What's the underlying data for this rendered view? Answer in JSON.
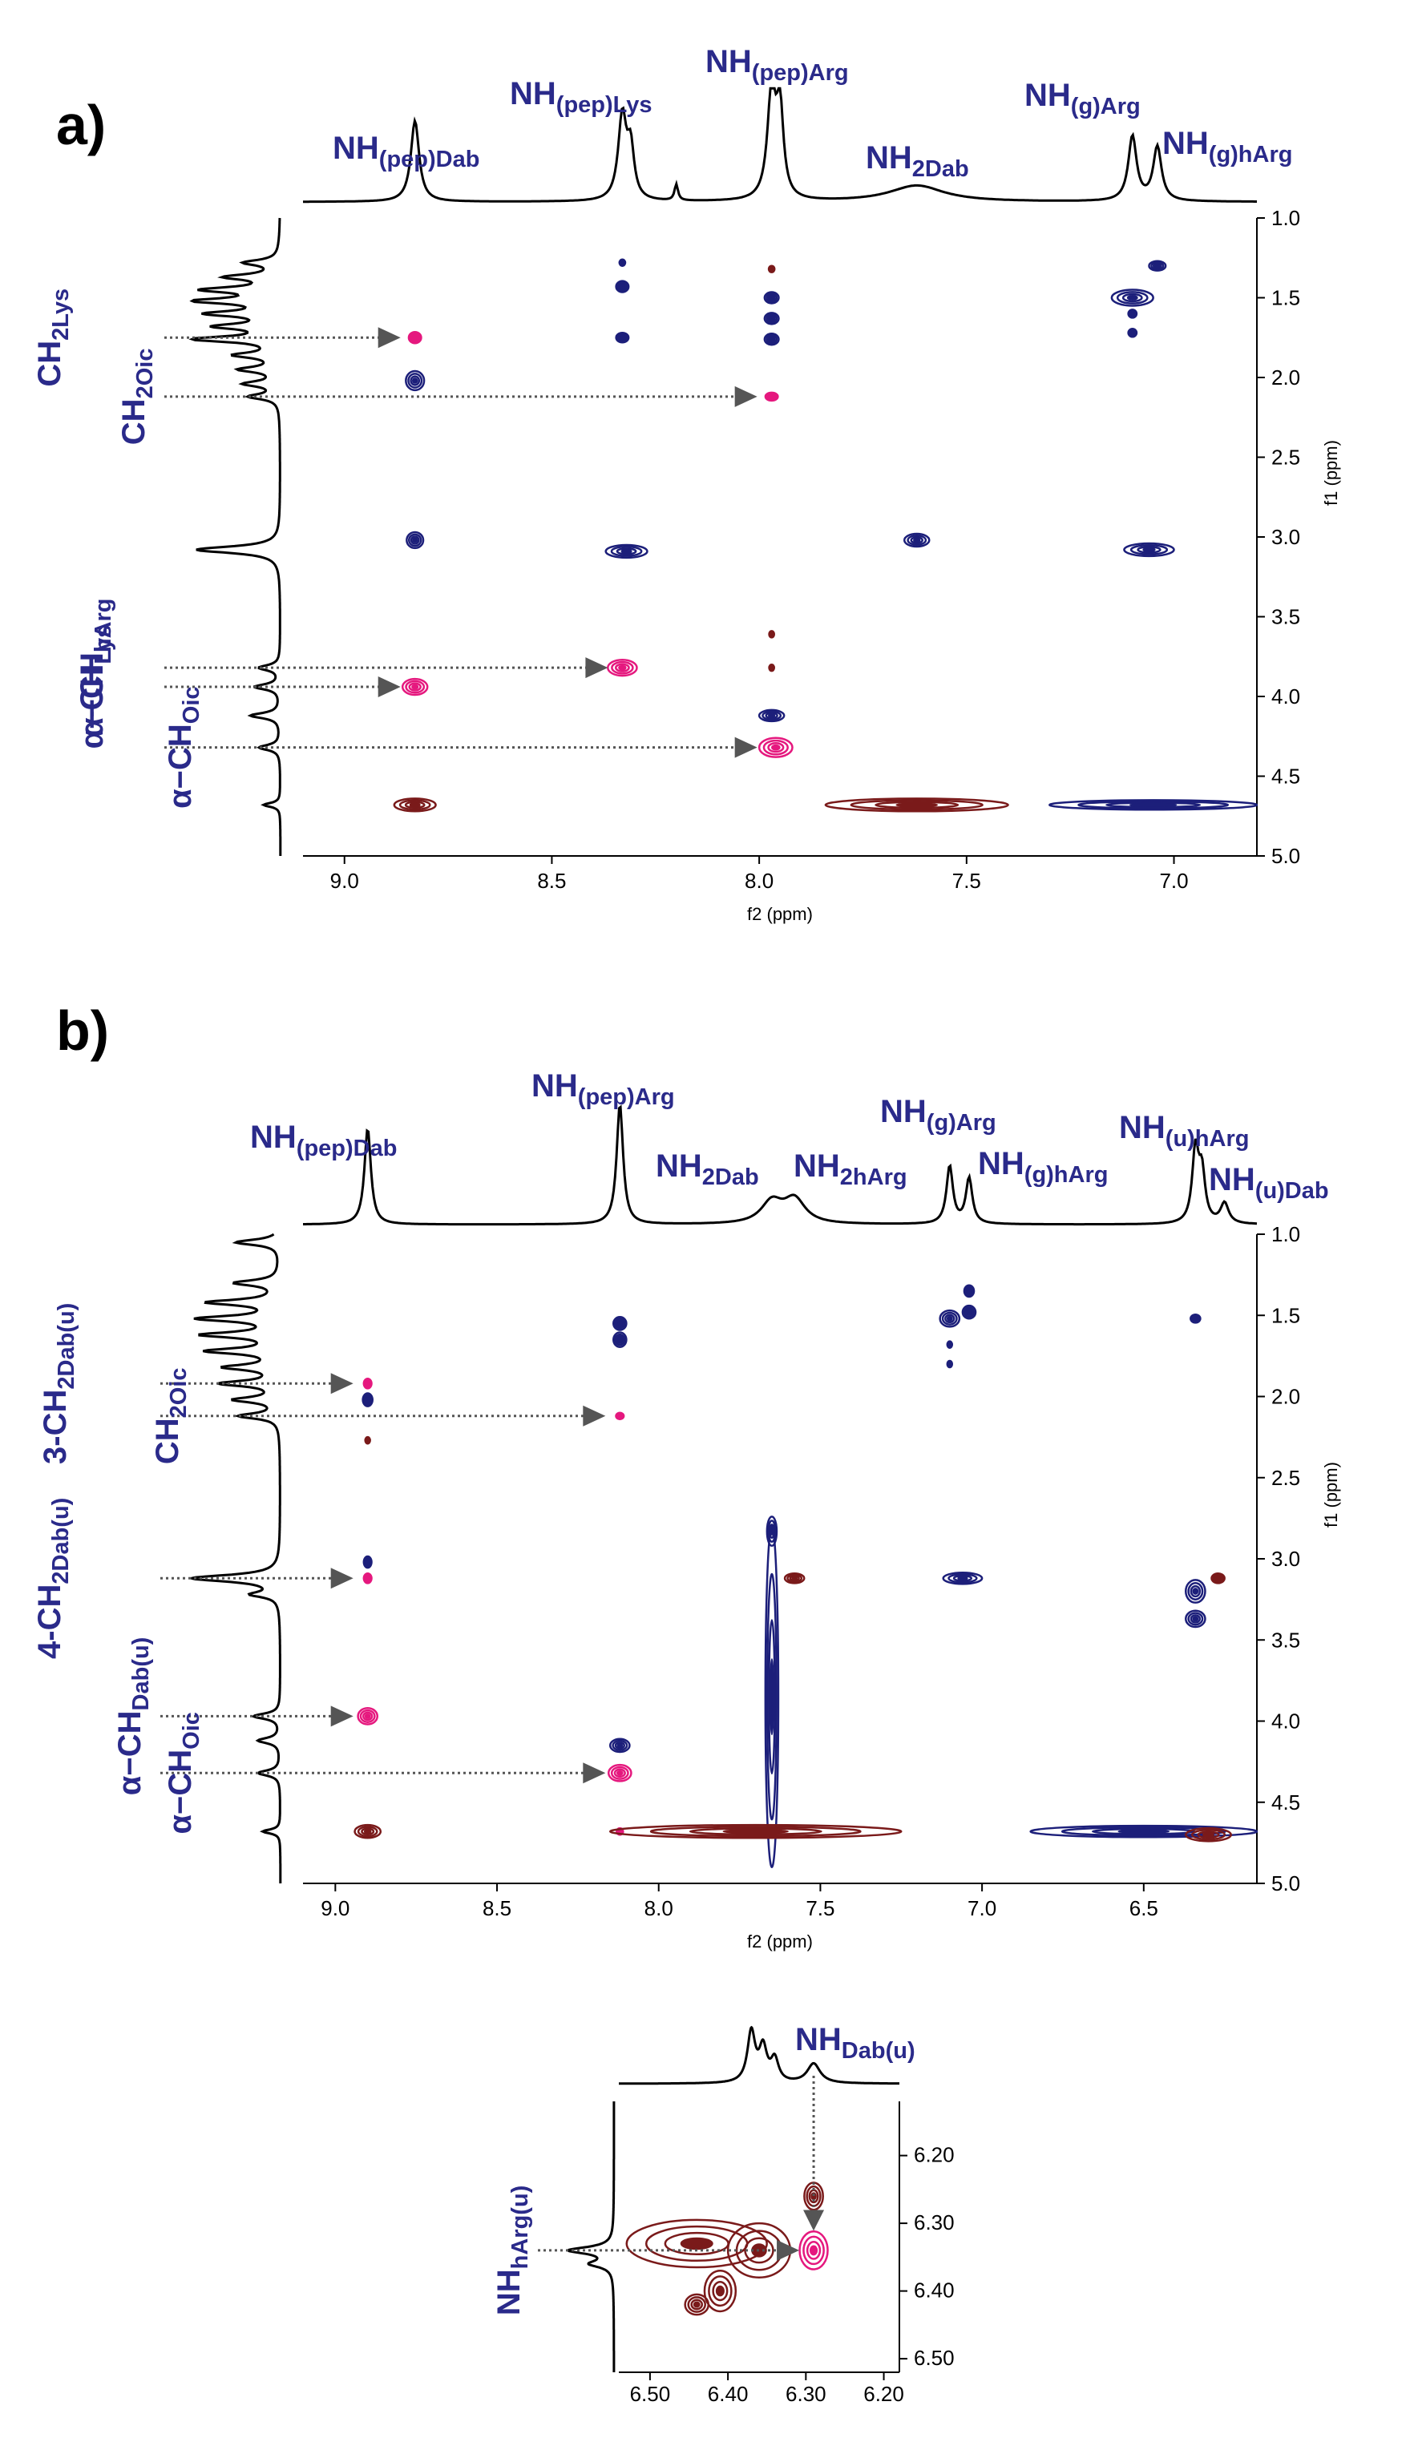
{
  "colors": {
    "positive": "#1c1f7a",
    "negative": "#7a1a1a",
    "highlight": "#e5187e",
    "label": "#2a2a8a",
    "spectrum": "#000000"
  },
  "chart_data": [
    {
      "panel": "a)",
      "type": "scatter",
      "subtype": "2D NMR contour map",
      "xlabel": "f2 (ppm)",
      "ylabel": "f1 (ppm)",
      "xlim": [
        9.1,
        6.8
      ],
      "ylim": [
        1.0,
        5.0
      ],
      "x_ticks": [
        "9.0",
        "8.5",
        "8.0",
        "7.5",
        "7.0"
      ],
      "y_ticks": [
        "1.0",
        "1.5",
        "2.0",
        "2.5",
        "3.0",
        "3.5",
        "4.0",
        "4.5",
        "5.0"
      ],
      "top_labels": [
        {
          "main": "NH",
          "sub": "(pep)Dab",
          "x": 8.83
        },
        {
          "main": "NH",
          "sub": "(pep)Lys",
          "x": 8.33
        },
        {
          "main": "NH",
          "sub": "(pep)Arg",
          "x": 7.97
        },
        {
          "main": "NH",
          "sub": "2Dab",
          "x": 7.62
        },
        {
          "main": "NH",
          "sub": "(g)Arg",
          "x": 7.1
        },
        {
          "main": "NH",
          "sub": "(g)hArg",
          "x": 7.04
        }
      ],
      "side_labels": [
        {
          "main": "CH",
          "sub": "2Lys",
          "y": 1.75
        },
        {
          "main": "CH",
          "sub": "2Oic",
          "y": 2.12
        },
        {
          "main": "α−CH",
          "sub": "hArg",
          "y": 3.82
        },
        {
          "main": "α−CH",
          "sub": "Lys",
          "y": 3.94
        },
        {
          "main": "α−CH",
          "sub": "Oic",
          "y": 4.32
        }
      ],
      "spectrum_1d_top": [
        {
          "x": 8.83,
          "height": 0.75,
          "width": 0.012
        },
        {
          "x": 8.33,
          "height": 0.78,
          "width": 0.012
        },
        {
          "x": 8.31,
          "height": 0.45,
          "width": 0.01
        },
        {
          "x": 8.2,
          "height": 0.15,
          "width": 0.005
        },
        {
          "x": 7.97,
          "height": 1.0,
          "width": 0.012
        },
        {
          "x": 7.95,
          "height": 0.8,
          "width": 0.01
        },
        {
          "x": 7.62,
          "height": 0.15,
          "width": 0.08
        },
        {
          "x": 7.1,
          "height": 0.6,
          "width": 0.012
        },
        {
          "x": 7.04,
          "height": 0.5,
          "width": 0.012
        }
      ],
      "spectrum_1d_side": [
        {
          "y": 1.28,
          "height": 0.4,
          "width": 0.02
        },
        {
          "y": 1.37,
          "height": 0.6,
          "width": 0.02
        },
        {
          "y": 1.45,
          "height": 0.85,
          "width": 0.02
        },
        {
          "y": 1.52,
          "height": 0.95,
          "width": 0.02
        },
        {
          "y": 1.6,
          "height": 0.8,
          "width": 0.02
        },
        {
          "y": 1.68,
          "height": 0.7,
          "width": 0.02
        },
        {
          "y": 1.76,
          "height": 1.0,
          "width": 0.02
        },
        {
          "y": 1.86,
          "height": 0.5,
          "width": 0.02
        },
        {
          "y": 1.95,
          "height": 0.45,
          "width": 0.02
        },
        {
          "y": 2.04,
          "height": 0.4,
          "width": 0.02
        },
        {
          "y": 2.12,
          "height": 0.35,
          "width": 0.02
        },
        {
          "y": 3.08,
          "height": 1.0,
          "width": 0.025
        },
        {
          "y": 3.82,
          "height": 0.25,
          "width": 0.02
        },
        {
          "y": 3.94,
          "height": 0.3,
          "width": 0.02
        },
        {
          "y": 4.12,
          "height": 0.35,
          "width": 0.02
        },
        {
          "y": 4.32,
          "height": 0.25,
          "width": 0.02
        },
        {
          "y": 4.68,
          "height": 0.2,
          "width": 0.015
        }
      ],
      "cross_peaks": [
        {
          "x": 8.83,
          "y": 1.75,
          "rx": 0.015,
          "ry": 0.035,
          "color": "highlight"
        },
        {
          "x": 8.83,
          "y": 2.02,
          "rx": 0.022,
          "ry": 0.06,
          "color": "positive"
        },
        {
          "x": 8.83,
          "y": 3.02,
          "rx": 0.02,
          "ry": 0.05,
          "color": "positive"
        },
        {
          "x": 8.83,
          "y": 3.94,
          "rx": 0.03,
          "ry": 0.05,
          "color": "highlight"
        },
        {
          "x": 8.83,
          "y": 4.68,
          "rx": 0.05,
          "ry": 0.04,
          "color": "negative"
        },
        {
          "x": 8.33,
          "y": 1.28,
          "rx": 0.007,
          "ry": 0.02,
          "color": "positive"
        },
        {
          "x": 8.33,
          "y": 1.43,
          "rx": 0.015,
          "ry": 0.035,
          "color": "positive"
        },
        {
          "x": 8.33,
          "y": 1.75,
          "rx": 0.015,
          "ry": 0.03,
          "color": "positive"
        },
        {
          "x": 8.32,
          "y": 3.09,
          "rx": 0.05,
          "ry": 0.04,
          "color": "positive"
        },
        {
          "x": 8.33,
          "y": 3.82,
          "rx": 0.035,
          "ry": 0.05,
          "color": "highlight"
        },
        {
          "x": 7.97,
          "y": 1.32,
          "rx": 0.007,
          "ry": 0.02,
          "color": "negative"
        },
        {
          "x": 7.97,
          "y": 1.5,
          "rx": 0.017,
          "ry": 0.035,
          "color": "positive"
        },
        {
          "x": 7.97,
          "y": 1.63,
          "rx": 0.017,
          "ry": 0.035,
          "color": "positive"
        },
        {
          "x": 7.97,
          "y": 1.76,
          "rx": 0.017,
          "ry": 0.035,
          "color": "positive"
        },
        {
          "x": 7.97,
          "y": 2.12,
          "rx": 0.015,
          "ry": 0.025,
          "color": "highlight"
        },
        {
          "x": 7.97,
          "y": 3.61,
          "rx": 0.006,
          "ry": 0.02,
          "color": "negative"
        },
        {
          "x": 7.97,
          "y": 3.82,
          "rx": 0.006,
          "ry": 0.02,
          "color": "negative"
        },
        {
          "x": 7.97,
          "y": 4.12,
          "rx": 0.03,
          "ry": 0.035,
          "color": "positive"
        },
        {
          "x": 7.96,
          "y": 4.32,
          "rx": 0.04,
          "ry": 0.06,
          "color": "highlight"
        },
        {
          "x": 7.62,
          "y": 3.02,
          "rx": 0.03,
          "ry": 0.04,
          "color": "positive"
        },
        {
          "x": 7.62,
          "y": 4.68,
          "rx": 0.22,
          "ry": 0.04,
          "color": "negative"
        },
        {
          "x": 7.1,
          "y": 1.5,
          "rx": 0.05,
          "ry": 0.05,
          "color": "positive"
        },
        {
          "x": 7.1,
          "y": 1.6,
          "rx": 0.01,
          "ry": 0.025,
          "color": "positive"
        },
        {
          "x": 7.1,
          "y": 1.72,
          "rx": 0.01,
          "ry": 0.025,
          "color": "positive"
        },
        {
          "x": 7.04,
          "y": 1.3,
          "rx": 0.02,
          "ry": 0.03,
          "color": "positive"
        },
        {
          "x": 7.06,
          "y": 3.08,
          "rx": 0.06,
          "ry": 0.04,
          "color": "positive"
        },
        {
          "x": 7.05,
          "y": 4.68,
          "rx": 0.25,
          "ry": 0.03,
          "color": "positive"
        }
      ],
      "arrows": [
        {
          "y": 1.75,
          "to_x": 8.83
        },
        {
          "y": 2.12,
          "to_x": 7.97
        },
        {
          "y": 3.82,
          "to_x": 8.33
        },
        {
          "y": 3.94,
          "to_x": 8.83
        },
        {
          "y": 4.32,
          "to_x": 7.97
        }
      ]
    },
    {
      "panel": "b)",
      "type": "scatter",
      "subtype": "2D NMR contour map",
      "xlabel": "f2 (ppm)",
      "ylabel": "f1 (ppm)",
      "xlim": [
        9.1,
        6.15
      ],
      "ylim": [
        1.0,
        5.0
      ],
      "x_ticks": [
        "9.0",
        "8.5",
        "8.0",
        "7.5",
        "7.0",
        "6.5"
      ],
      "y_ticks": [
        "1.0",
        "1.5",
        "2.0",
        "2.5",
        "3.0",
        "3.5",
        "4.0",
        "4.5",
        "5.0"
      ],
      "top_labels": [
        {
          "main": "NH",
          "sub": "(pep)Dab",
          "x": 8.9
        },
        {
          "main": "NH",
          "sub": "(pep)Arg",
          "x": 8.12
        },
        {
          "main": "NH",
          "sub": "2Dab",
          "x": 7.65
        },
        {
          "main": "NH",
          "sub": "2hArg",
          "x": 7.58
        },
        {
          "main": "NH",
          "sub": "(g)Arg",
          "x": 7.1
        },
        {
          "main": "NH",
          "sub": "(g)hArg",
          "x": 7.04
        },
        {
          "main": "NH",
          "sub": "(u)hArg",
          "x": 6.34
        },
        {
          "main": "NH",
          "sub": "(u)Dab",
          "x": 6.27
        }
      ],
      "side_labels": [
        {
          "main": "3-CH",
          "sub": "2Dab(u)",
          "y": 1.92
        },
        {
          "main": "CH",
          "sub": "2Oic",
          "y": 2.12
        },
        {
          "main": "4-CH",
          "sub": "2Dab(u)",
          "y": 3.12
        },
        {
          "main": "α−CH",
          "sub": "Dab(u)",
          "y": 3.97
        },
        {
          "main": "α−CH",
          "sub": "Oic",
          "y": 4.32
        }
      ],
      "spectrum_1d_top": [
        {
          "x": 8.9,
          "height": 0.8,
          "width": 0.012
        },
        {
          "x": 8.12,
          "height": 1.0,
          "width": 0.012
        },
        {
          "x": 7.65,
          "height": 0.18,
          "width": 0.04
        },
        {
          "x": 7.58,
          "height": 0.2,
          "width": 0.04
        },
        {
          "x": 7.1,
          "height": 0.48,
          "width": 0.012
        },
        {
          "x": 7.04,
          "height": 0.38,
          "width": 0.012
        },
        {
          "x": 6.34,
          "height": 0.6,
          "width": 0.012
        },
        {
          "x": 6.32,
          "height": 0.4,
          "width": 0.012
        },
        {
          "x": 6.25,
          "height": 0.17,
          "width": 0.015
        }
      ],
      "spectrum_1d_side": [
        {
          "y": 1.05,
          "height": 0.5,
          "width": 0.02
        },
        {
          "y": 1.3,
          "height": 0.5,
          "width": 0.02
        },
        {
          "y": 1.42,
          "height": 0.8,
          "width": 0.02
        },
        {
          "y": 1.52,
          "height": 0.9,
          "width": 0.02
        },
        {
          "y": 1.62,
          "height": 0.85,
          "width": 0.02
        },
        {
          "y": 1.72,
          "height": 0.8,
          "width": 0.02
        },
        {
          "y": 1.82,
          "height": 0.6,
          "width": 0.02
        },
        {
          "y": 1.92,
          "height": 0.65,
          "width": 0.02
        },
        {
          "y": 2.02,
          "height": 0.5,
          "width": 0.02
        },
        {
          "y": 2.12,
          "height": 0.45,
          "width": 0.02
        },
        {
          "y": 3.12,
          "height": 1.0,
          "width": 0.025
        },
        {
          "y": 3.22,
          "height": 0.3,
          "width": 0.02
        },
        {
          "y": 3.97,
          "height": 0.3,
          "width": 0.02
        },
        {
          "y": 4.12,
          "height": 0.25,
          "width": 0.02
        },
        {
          "y": 4.32,
          "height": 0.25,
          "width": 0.02
        },
        {
          "y": 4.68,
          "height": 0.2,
          "width": 0.015
        }
      ],
      "cross_peaks": [
        {
          "x": 8.9,
          "y": 1.92,
          "rx": 0.012,
          "ry": 0.03,
          "color": "highlight"
        },
        {
          "x": 8.9,
          "y": 2.02,
          "rx": 0.015,
          "ry": 0.04,
          "color": "positive"
        },
        {
          "x": 8.9,
          "y": 2.27,
          "rx": 0.006,
          "ry": 0.02,
          "color": "negative"
        },
        {
          "x": 8.9,
          "y": 3.02,
          "rx": 0.012,
          "ry": 0.035,
          "color": "positive"
        },
        {
          "x": 8.9,
          "y": 3.12,
          "rx": 0.012,
          "ry": 0.03,
          "color": "highlight"
        },
        {
          "x": 8.9,
          "y": 3.97,
          "rx": 0.03,
          "ry": 0.05,
          "color": "highlight"
        },
        {
          "x": 8.9,
          "y": 4.68,
          "rx": 0.04,
          "ry": 0.04,
          "color": "negative"
        },
        {
          "x": 8.12,
          "y": 1.55,
          "rx": 0.02,
          "ry": 0.04,
          "color": "positive"
        },
        {
          "x": 8.12,
          "y": 1.65,
          "rx": 0.02,
          "ry": 0.045,
          "color": "positive"
        },
        {
          "x": 8.12,
          "y": 2.12,
          "rx": 0.012,
          "ry": 0.02,
          "color": "highlight"
        },
        {
          "x": 8.12,
          "y": 4.15,
          "rx": 0.03,
          "ry": 0.04,
          "color": "positive"
        },
        {
          "x": 8.12,
          "y": 4.32,
          "rx": 0.035,
          "ry": 0.05,
          "color": "highlight"
        },
        {
          "x": 8.12,
          "y": 4.68,
          "rx": 0.01,
          "ry": 0.02,
          "color": "highlight"
        },
        {
          "x": 7.65,
          "y": 2.83,
          "rx": 0.015,
          "ry": 0.09,
          "color": "positive"
        },
        {
          "x": 7.65,
          "y": 3.85,
          "rx": 0.02,
          "ry": 1.05,
          "color": "positive"
        },
        {
          "x": 7.58,
          "y": 3.12,
          "rx": 0.03,
          "ry": 0.03,
          "color": "negative"
        },
        {
          "x": 7.7,
          "y": 4.68,
          "rx": 0.45,
          "ry": 0.04,
          "color": "negative"
        },
        {
          "x": 7.1,
          "y": 1.52,
          "rx": 0.03,
          "ry": 0.05,
          "color": "positive"
        },
        {
          "x": 7.1,
          "y": 1.68,
          "rx": 0.006,
          "ry": 0.02,
          "color": "positive"
        },
        {
          "x": 7.1,
          "y": 1.8,
          "rx": 0.006,
          "ry": 0.02,
          "color": "positive"
        },
        {
          "x": 7.04,
          "y": 1.35,
          "rx": 0.015,
          "ry": 0.035,
          "color": "positive"
        },
        {
          "x": 7.04,
          "y": 1.48,
          "rx": 0.02,
          "ry": 0.04,
          "color": "positive"
        },
        {
          "x": 7.06,
          "y": 3.12,
          "rx": 0.06,
          "ry": 0.035,
          "color": "positive"
        },
        {
          "x": 6.34,
          "y": 1.52,
          "rx": 0.015,
          "ry": 0.025,
          "color": "positive"
        },
        {
          "x": 6.34,
          "y": 3.2,
          "rx": 0.03,
          "ry": 0.07,
          "color": "positive"
        },
        {
          "x": 6.34,
          "y": 3.37,
          "rx": 0.03,
          "ry": 0.05,
          "color": "positive"
        },
        {
          "x": 6.27,
          "y": 3.12,
          "rx": 0.02,
          "ry": 0.03,
          "color": "negative"
        },
        {
          "x": 6.5,
          "y": 4.68,
          "rx": 0.35,
          "ry": 0.035,
          "color": "positive"
        },
        {
          "x": 6.3,
          "y": 4.7,
          "rx": 0.07,
          "ry": 0.04,
          "color": "negative"
        }
      ],
      "arrows": [
        {
          "y": 1.92,
          "to_x": 8.9
        },
        {
          "y": 2.12,
          "to_x": 8.12
        },
        {
          "y": 3.12,
          "to_x": 8.9
        },
        {
          "y": 3.97,
          "to_x": 8.9
        },
        {
          "y": 4.32,
          "to_x": 8.12
        }
      ]
    },
    {
      "panel": "",
      "type": "scatter",
      "subtype": "2D NMR contour map (inset)",
      "xlabel": "",
      "ylabel": "",
      "xlim": [
        6.54,
        6.18
      ],
      "ylim": [
        6.12,
        6.52
      ],
      "x_ticks": [
        "6.50",
        "6.40",
        "6.30",
        "6.20"
      ],
      "y_ticks": [
        "6.20",
        "6.30",
        "6.40",
        "6.50"
      ],
      "top_labels": [
        {
          "main": "NH",
          "sub": "Dab(u)",
          "x": 6.29
        }
      ],
      "side_labels": [
        {
          "main": "NH",
          "sub": "hArg(u)",
          "y": 6.34
        }
      ],
      "spectrum_1d_top": [
        {
          "x": 6.37,
          "height": 0.9,
          "width": 0.006
        },
        {
          "x": 6.355,
          "height": 0.6,
          "width": 0.006
        },
        {
          "x": 6.34,
          "height": 0.4,
          "width": 0.006
        },
        {
          "x": 6.29,
          "height": 0.35,
          "width": 0.01
        }
      ],
      "spectrum_1d_side": [
        {
          "y": 6.34,
          "height": 1.0,
          "width": 0.006
        },
        {
          "y": 6.36,
          "height": 0.5,
          "width": 0.006
        }
      ],
      "cross_peaks": [
        {
          "x": 6.29,
          "y": 6.26,
          "rx": 0.012,
          "ry": 0.02,
          "color": "negative"
        },
        {
          "x": 6.29,
          "y": 6.34,
          "rx": 0.018,
          "ry": 0.028,
          "color": "highlight"
        },
        {
          "x": 6.36,
          "y": 6.34,
          "rx": 0.04,
          "ry": 0.04,
          "color": "negative"
        },
        {
          "x": 6.44,
          "y": 6.33,
          "rx": 0.09,
          "ry": 0.035,
          "color": "negative"
        },
        {
          "x": 6.41,
          "y": 6.4,
          "rx": 0.02,
          "ry": 0.03,
          "color": "negative"
        },
        {
          "x": 6.44,
          "y": 6.42,
          "rx": 0.015,
          "ry": 0.015,
          "color": "negative"
        }
      ],
      "arrows": [
        {
          "y": 6.34,
          "to_x": 6.29
        }
      ],
      "arrow_down": {
        "x": 6.29,
        "from_y": 6.14,
        "to_y": 6.33
      }
    }
  ]
}
